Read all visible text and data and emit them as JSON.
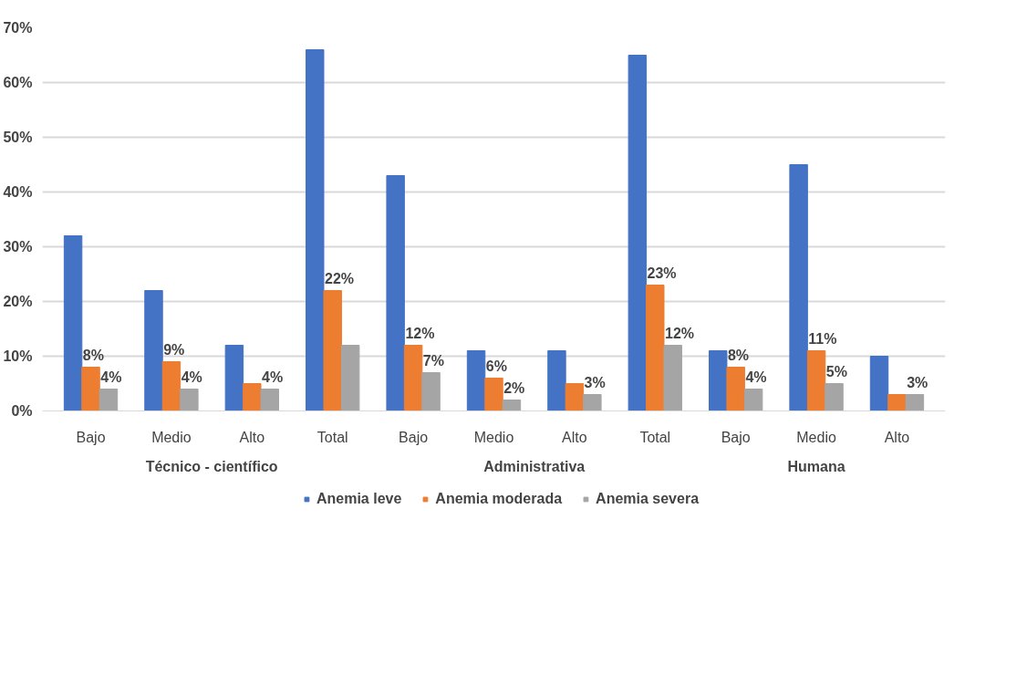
{
  "chart_data": {
    "type": "bar",
    "categories": [
      "Bajo",
      "Medio",
      "Alto",
      "Total",
      "Bajo",
      "Medio",
      "Alto",
      "Total",
      "Bajo",
      "Medio",
      "Alto"
    ],
    "series": [
      {
        "name": "Anemia leve",
        "color": "#4472c4",
        "values": [
          32,
          22,
          12,
          66,
          43,
          11,
          11,
          65,
          11,
          45,
          10
        ]
      },
      {
        "name": "Anemia moderada",
        "color": "#ed7d31",
        "values": [
          8,
          9,
          5,
          22,
          12,
          6,
          5,
          23,
          8,
          11,
          3
        ],
        "value_labels": [
          "8%",
          "9%",
          null,
          "22%",
          "12%",
          "6%",
          null,
          "23%",
          "8%",
          "11%",
          null
        ]
      },
      {
        "name": "Anemia severa",
        "color": "#a5a5a5",
        "values": [
          4,
          4,
          4,
          12,
          7,
          2,
          3,
          12,
          4,
          5,
          3
        ],
        "value_labels": [
          "4%",
          "4%",
          "4%",
          null,
          "7%",
          "2%",
          "3%",
          "12%",
          "4%",
          "5%",
          "3%"
        ]
      }
    ],
    "ylim": [
      0,
      70
    ],
    "yticks": [
      {
        "value": 0,
        "label": "0%"
      },
      {
        "value": 10,
        "label": "10%"
      },
      {
        "value": 20,
        "label": "20%"
      },
      {
        "value": 30,
        "label": "30%"
      },
      {
        "value": 40,
        "label": "40%"
      },
      {
        "value": 50,
        "label": "50%"
      },
      {
        "value": 60,
        "label": "60%"
      },
      {
        "value": 70,
        "label": "70%"
      }
    ],
    "annotations": [
      "Técnico - científico",
      "Administrativa",
      "Humana"
    ],
    "grid": "y",
    "legend": "bottom"
  }
}
